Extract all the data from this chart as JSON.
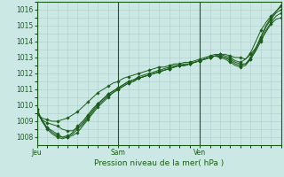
{
  "xlabel": "Pression niveau de la mer( hPa )",
  "bg_color": "#cce8e4",
  "grid_color": "#aacccc",
  "line_color": "#1a5c1a",
  "ylim": [
    1007.5,
    1016.5
  ],
  "yticks": [
    1008,
    1009,
    1010,
    1011,
    1012,
    1013,
    1014,
    1015,
    1016
  ],
  "xtick_labels": [
    "Jeu",
    "Sam",
    "Ven"
  ],
  "xtick_positions": [
    0,
    16,
    32
  ],
  "vline_positions": [
    0,
    16,
    32
  ],
  "xlim": [
    0,
    48
  ],
  "lines": [
    [
      1009.5,
      1009.2,
      1009.1,
      1009.0,
      1009.0,
      1009.1,
      1009.2,
      1009.4,
      1009.6,
      1009.9,
      1010.2,
      1010.5,
      1010.8,
      1011.0,
      1011.2,
      1011.4,
      1011.5,
      1011.7,
      1011.8,
      1011.9,
      1012.0,
      1012.1,
      1012.2,
      1012.3,
      1012.4,
      1012.4,
      1012.5,
      1012.6,
      1012.6,
      1012.7,
      1012.7,
      1012.8,
      1012.9,
      1013.0,
      1013.1,
      1013.2,
      1013.2,
      1013.2,
      1013.1,
      1013.0,
      1013.0,
      1012.9,
      1013.2,
      1013.6,
      1014.1,
      1014.6,
      1015.1,
      1015.4,
      1015.5
    ],
    [
      1009.5,
      1009.1,
      1008.9,
      1008.8,
      1008.7,
      1008.5,
      1008.4,
      1008.4,
      1008.6,
      1008.9,
      1009.3,
      1009.7,
      1010.1,
      1010.4,
      1010.7,
      1010.9,
      1011.1,
      1011.3,
      1011.5,
      1011.6,
      1011.8,
      1011.9,
      1012.0,
      1012.1,
      1012.2,
      1012.3,
      1012.4,
      1012.5,
      1012.5,
      1012.6,
      1012.6,
      1012.7,
      1012.8,
      1012.9,
      1013.0,
      1013.1,
      1013.1,
      1013.0,
      1012.9,
      1012.7,
      1012.6,
      1012.6,
      1012.9,
      1013.4,
      1014.0,
      1014.7,
      1015.2,
      1015.6,
      1015.8
    ],
    [
      1009.6,
      1009.0,
      1008.6,
      1008.4,
      1008.2,
      1008.0,
      1008.0,
      1008.1,
      1008.3,
      1008.7,
      1009.1,
      1009.5,
      1009.9,
      1010.2,
      1010.5,
      1010.8,
      1011.0,
      1011.2,
      1011.4,
      1011.5,
      1011.7,
      1011.8,
      1011.9,
      1012.0,
      1012.1,
      1012.2,
      1012.3,
      1012.4,
      1012.5,
      1012.5,
      1012.6,
      1012.7,
      1012.8,
      1012.9,
      1013.0,
      1013.1,
      1013.0,
      1012.9,
      1012.7,
      1012.5,
      1012.4,
      1012.5,
      1012.9,
      1013.5,
      1014.2,
      1014.9,
      1015.4,
      1015.8,
      1016.0
    ],
    [
      1009.7,
      1009.1,
      1008.6,
      1008.3,
      1008.1,
      1008.0,
      1008.1,
      1008.2,
      1008.5,
      1008.8,
      1009.2,
      1009.6,
      1010.0,
      1010.3,
      1010.6,
      1010.8,
      1011.0,
      1011.2,
      1011.4,
      1011.5,
      1011.7,
      1011.8,
      1011.9,
      1012.0,
      1012.1,
      1012.2,
      1012.3,
      1012.4,
      1012.5,
      1012.5,
      1012.6,
      1012.7,
      1012.8,
      1012.9,
      1013.0,
      1013.1,
      1013.1,
      1013.0,
      1012.8,
      1012.6,
      1012.5,
      1012.6,
      1013.0,
      1013.6,
      1014.3,
      1015.0,
      1015.5,
      1015.9,
      1016.2
    ],
    [
      1009.8,
      1009.0,
      1008.5,
      1008.2,
      1008.0,
      1007.9,
      1008.0,
      1008.3,
      1008.7,
      1009.0,
      1009.4,
      1009.8,
      1010.1,
      1010.4,
      1010.7,
      1010.9,
      1011.1,
      1011.3,
      1011.5,
      1011.6,
      1011.7,
      1011.8,
      1011.9,
      1012.0,
      1012.1,
      1012.2,
      1012.3,
      1012.4,
      1012.5,
      1012.5,
      1012.6,
      1012.7,
      1012.8,
      1012.9,
      1013.0,
      1013.1,
      1013.2,
      1013.1,
      1013.0,
      1012.8,
      1012.7,
      1012.9,
      1013.3,
      1014.0,
      1014.7,
      1015.2,
      1015.6,
      1015.9,
      1016.3
    ]
  ]
}
